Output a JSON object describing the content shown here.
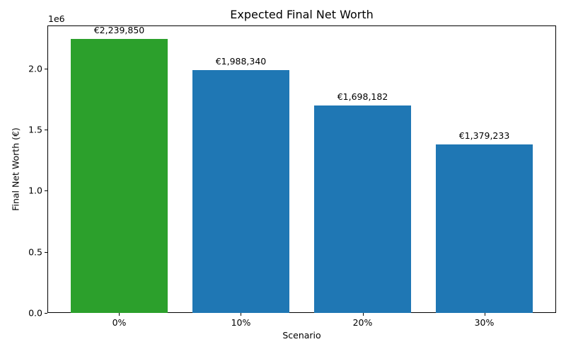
{
  "chart_data": {
    "type": "bar",
    "title": "Expected Final Net Worth",
    "xlabel": "Scenario",
    "ylabel": "Final Net Worth (€)",
    "y_offset_text": "1e6",
    "categories": [
      "0%",
      "10%",
      "20%",
      "30%"
    ],
    "values": [
      2239850,
      1988340,
      1698182,
      1379233
    ],
    "bar_labels": [
      "€2,239,850",
      "€1,988,340",
      "€1,698,182",
      "€1,379,233"
    ],
    "bar_colors": [
      "#2ca02c",
      "#1f77b4",
      "#1f77b4",
      "#1f77b4"
    ],
    "ylim": [
      0,
      2351842
    ],
    "yticks": [
      0,
      500000,
      1000000,
      1500000,
      2000000
    ],
    "ytick_labels": [
      "0.0",
      "0.5",
      "1.0",
      "1.5",
      "2.0"
    ],
    "grid": false,
    "legend": "none"
  }
}
